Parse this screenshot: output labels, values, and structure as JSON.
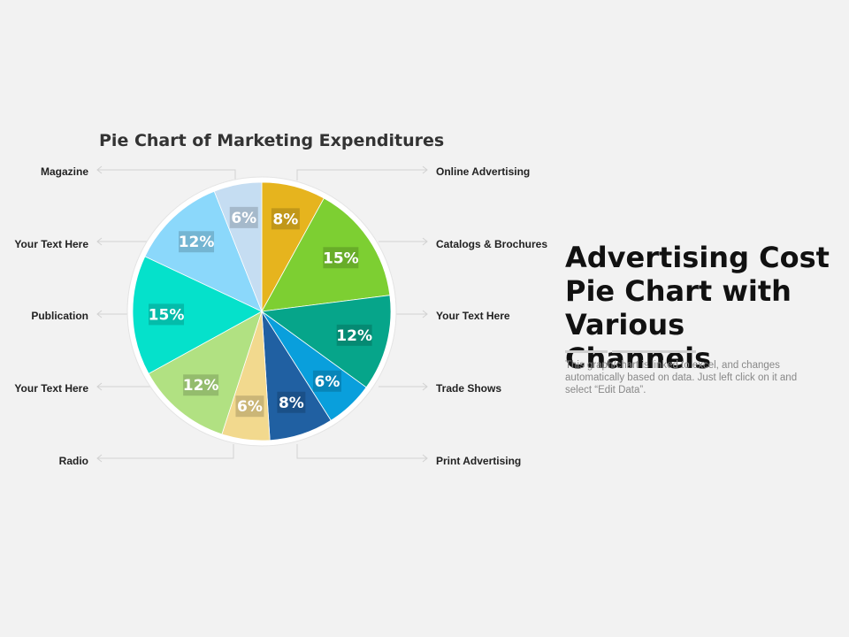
{
  "chart_data": {
    "type": "pie",
    "title": "Pie Chart of Marketing Expenditures",
    "unit": "%",
    "slices": [
      {
        "label": "Online Advertising",
        "value": 8,
        "value_label": "8%",
        "color": "#e6b41e"
      },
      {
        "label": "Catalogs & Brochures",
        "value": 15,
        "value_label": "15%",
        "color": "#7dcf32"
      },
      {
        "label": "Your Text Here",
        "value": 12,
        "value_label": "12%",
        "color": "#06a58a"
      },
      {
        "label": "Trade Shows",
        "value": 6,
        "value_label": "6%",
        "color": "#099fdc"
      },
      {
        "label": "Print Advertising",
        "value": 8,
        "value_label": "8%",
        "color": "#2060a2"
      },
      {
        "label": "Radio",
        "value": 6,
        "value_label": "6%",
        "color": "#f2d98e"
      },
      {
        "label": "Your Text Here",
        "value": 12,
        "value_label": "12%",
        "color": "#b1e182"
      },
      {
        "label": "Publication",
        "value": 15,
        "value_label": "15%",
        "color": "#05e1cb"
      },
      {
        "label": "Your Text Here",
        "value": 12,
        "value_label": "12%",
        "color": "#8bd8fb"
      },
      {
        "label": "Magazine",
        "value": 6,
        "value_label": "6%",
        "color": "#c5ddf2"
      }
    ],
    "legend_labels": {
      "left": [
        "Magazine",
        "Your Text Here",
        "Publication",
        "Your Text Here",
        "Radio"
      ],
      "right": [
        "Online Advertising",
        "Catalogs & Brochures",
        "Your Text Here",
        "Trade Shows",
        "Print Advertising"
      ]
    }
  },
  "side_panel": {
    "title": "Advertising Cost Pie Chart with Various Channels",
    "description": "This graph/chart is linked to excel, and changes automatically based on data. Just left click on it and select “Edit Data”."
  }
}
